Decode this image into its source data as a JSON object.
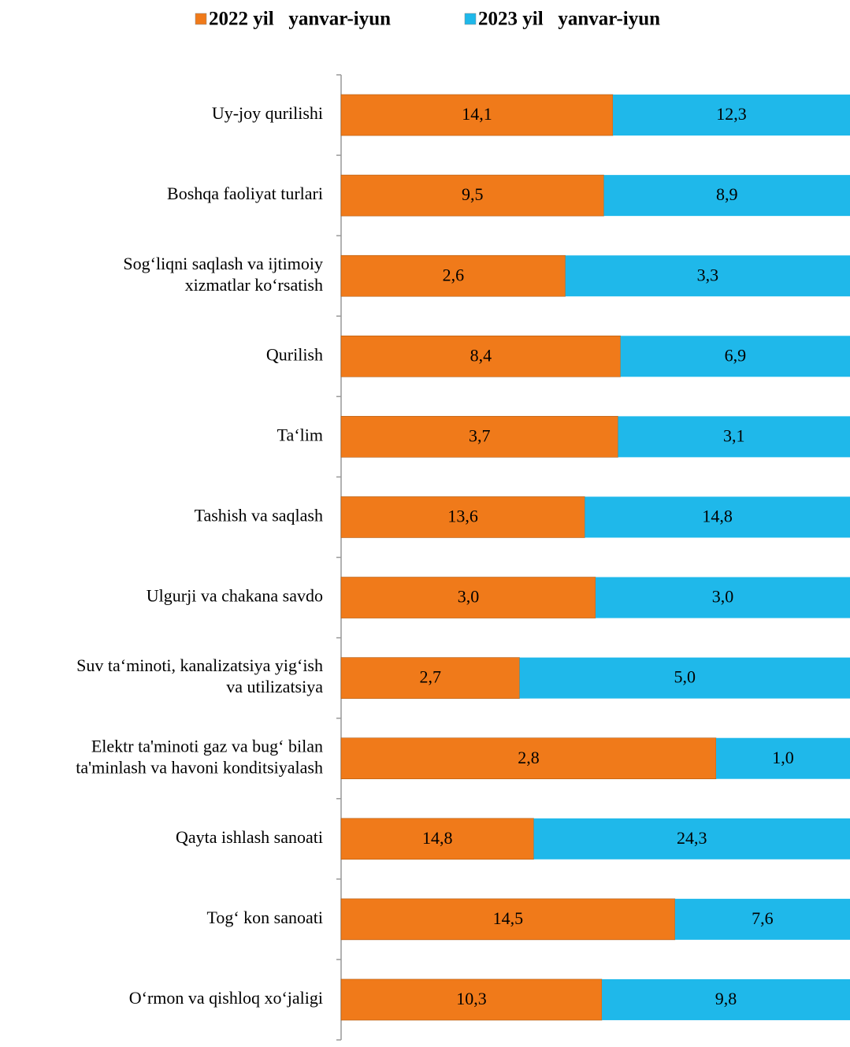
{
  "chart_data": {
    "type": "bar",
    "orientation": "horizontal",
    "stacked": "percent",
    "categories": [
      [
        "Uy-joy qurilishi"
      ],
      [
        "Boshqa faoliyat turlari"
      ],
      [
        "Sog‘liqni saqlash va ijtimoiy",
        "xizmatlar ko‘rsatish"
      ],
      [
        "Qurilish"
      ],
      [
        "Ta‘lim"
      ],
      [
        "Tashish va saqlash"
      ],
      [
        "Ulgurji va chakana savdo"
      ],
      [
        "Suv ta‘minoti, kanalizatsiya yig‘ish",
        "va utilizatsiya"
      ],
      [
        "Elektr ta'minoti gaz va bug‘ bilan",
        "ta'minlash va havoni konditsiyalash"
      ],
      [
        "Qayta ishlash sanoati"
      ],
      [
        "Tog‘ kon sanoati"
      ],
      [
        "O‘rmon va qishloq xo‘jaligi"
      ]
    ],
    "series": [
      {
        "name": "2022 yil   yanvar-iyun",
        "color": "#f07a1a",
        "values": [
          14.1,
          9.5,
          2.6,
          8.4,
          3.7,
          13.6,
          3.0,
          2.7,
          2.8,
          14.8,
          14.5,
          10.3
        ],
        "value_labels": [
          "14,1",
          "9,5",
          "2,6",
          "8,4",
          "3,7",
          "13,6",
          "3,0",
          "2,7",
          "2,8",
          "14,8",
          "14,5",
          "10,3"
        ]
      },
      {
        "name": "2023 yil   yanvar-iyun",
        "color": "#1fb8ea",
        "values": [
          12.3,
          8.9,
          3.3,
          6.9,
          3.1,
          14.8,
          3.0,
          5.0,
          1.0,
          24.3,
          7.6,
          9.8
        ],
        "value_labels": [
          "12,3",
          "8,9",
          "3,3",
          "6,9",
          "3,1",
          "14,8",
          "3,0",
          "5,0",
          "1,0",
          "24,3",
          "7,6",
          "9,8"
        ]
      }
    ],
    "legend": "top"
  }
}
